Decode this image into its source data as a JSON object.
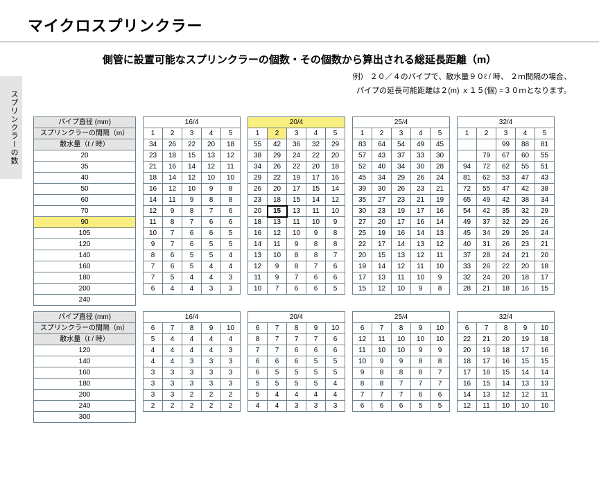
{
  "title": "マイクロスプリンクラー",
  "subtitle": "側管に設置可能なスプリンクラーの個数・その個数から算出される総延長距離（m）",
  "example_line1": "例） ２０／４のパイプで、散水量９０ℓ / 時、 ２ｍ間隔の場合、",
  "example_line2": "パイプの延長可能距離は２(m) ｘ１５(個) =３０ｍとなります。",
  "side_tab": "スプリンクラーの数",
  "rowhead_labels": {
    "pipe_diam": "パイプ直径 (mm)",
    "spacing": "スプリンクラーの間隔（m）",
    "flow": "散水量（ℓ / 時）"
  },
  "pipes": [
    "16/4",
    "20/4",
    "25/4",
    "32/4"
  ],
  "highlight": {
    "block": 0,
    "pipe": 1,
    "col": 1,
    "row": 6
  },
  "blocks": [
    {
      "spacing_cols": [
        1,
        2,
        3,
        4,
        5
      ],
      "flows": [
        20,
        35,
        40,
        50,
        60,
        70,
        90,
        105,
        120,
        140,
        160,
        180,
        200,
        240
      ],
      "data": [
        [
          [
            34,
            26,
            22,
            20,
            18
          ],
          [
            23,
            18,
            15,
            13,
            12
          ],
          [
            21,
            16,
            14,
            12,
            11
          ],
          [
            18,
            14,
            12,
            10,
            10
          ],
          [
            16,
            12,
            10,
            9,
            8
          ],
          [
            14,
            11,
            9,
            8,
            8
          ],
          [
            12,
            9,
            8,
            7,
            6
          ],
          [
            11,
            8,
            7,
            6,
            6
          ],
          [
            10,
            7,
            6,
            6,
            5
          ],
          [
            9,
            7,
            6,
            5,
            5
          ],
          [
            8,
            6,
            5,
            5,
            4
          ],
          [
            7,
            6,
            5,
            4,
            4
          ],
          [
            7,
            5,
            4,
            4,
            3
          ],
          [
            6,
            4,
            4,
            3,
            3
          ]
        ],
        [
          [
            55,
            42,
            36,
            32,
            29
          ],
          [
            38,
            29,
            24,
            22,
            20
          ],
          [
            34,
            26,
            22,
            20,
            18
          ],
          [
            29,
            22,
            19,
            17,
            16
          ],
          [
            26,
            20,
            17,
            15,
            14
          ],
          [
            23,
            18,
            15,
            14,
            12
          ],
          [
            20,
            15,
            13,
            11,
            10
          ],
          [
            18,
            13,
            11,
            10,
            9
          ],
          [
            16,
            12,
            10,
            9,
            8
          ],
          [
            14,
            11,
            9,
            8,
            8
          ],
          [
            13,
            10,
            8,
            8,
            7
          ],
          [
            12,
            9,
            8,
            7,
            6
          ],
          [
            11,
            9,
            7,
            6,
            6
          ],
          [
            10,
            7,
            6,
            6,
            5
          ]
        ],
        [
          [
            83,
            64,
            54,
            49,
            45
          ],
          [
            57,
            43,
            37,
            33,
            30
          ],
          [
            52,
            40,
            34,
            30,
            28
          ],
          [
            45,
            34,
            29,
            26,
            24
          ],
          [
            39,
            30,
            26,
            23,
            21
          ],
          [
            35,
            27,
            23,
            21,
            19
          ],
          [
            30,
            23,
            19,
            17,
            16
          ],
          [
            27,
            20,
            17,
            16,
            14
          ],
          [
            25,
            19,
            16,
            14,
            13
          ],
          [
            22,
            17,
            14,
            13,
            12
          ],
          [
            20,
            15,
            13,
            12,
            11
          ],
          [
            19,
            14,
            12,
            11,
            10
          ],
          [
            17,
            13,
            11,
            10,
            9
          ],
          [
            15,
            12,
            10,
            9,
            8
          ]
        ],
        [
          [
            "",
            "",
            99,
            88,
            81
          ],
          [
            "",
            79,
            67,
            60,
            55
          ],
          [
            94,
            72,
            62,
            55,
            51
          ],
          [
            81,
            62,
            53,
            47,
            43
          ],
          [
            72,
            55,
            47,
            42,
            38
          ],
          [
            65,
            49,
            42,
            38,
            34
          ],
          [
            54,
            42,
            35,
            32,
            29
          ],
          [
            49,
            37,
            32,
            29,
            26
          ],
          [
            45,
            34,
            29,
            26,
            24
          ],
          [
            40,
            31,
            26,
            23,
            21
          ],
          [
            37,
            28,
            24,
            21,
            20
          ],
          [
            33,
            26,
            22,
            20,
            18
          ],
          [
            32,
            24,
            20,
            18,
            17
          ],
          [
            28,
            21,
            18,
            16,
            15
          ]
        ]
      ]
    },
    {
      "spacing_cols": [
        6,
        7,
        8,
        9,
        10
      ],
      "flows": [
        120,
        140,
        160,
        180,
        200,
        240,
        300
      ],
      "data": [
        [
          [
            5,
            4,
            4,
            4,
            4
          ],
          [
            4,
            4,
            4,
            4,
            3
          ],
          [
            4,
            4,
            3,
            3,
            3
          ],
          [
            3,
            3,
            3,
            3,
            3
          ],
          [
            3,
            3,
            3,
            3,
            3
          ],
          [
            3,
            3,
            2,
            2,
            2
          ],
          [
            2,
            2,
            2,
            2,
            2
          ]
        ],
        [
          [
            8,
            7,
            7,
            7,
            6
          ],
          [
            7,
            7,
            6,
            6,
            6
          ],
          [
            6,
            6,
            6,
            5,
            5
          ],
          [
            6,
            5,
            5,
            5,
            5
          ],
          [
            5,
            5,
            5,
            5,
            4
          ],
          [
            5,
            4,
            4,
            4,
            4
          ],
          [
            4,
            4,
            3,
            3,
            3
          ]
        ],
        [
          [
            12,
            11,
            10,
            10,
            10
          ],
          [
            11,
            10,
            10,
            9,
            9
          ],
          [
            10,
            9,
            9,
            8,
            8
          ],
          [
            9,
            8,
            8,
            8,
            7
          ],
          [
            8,
            8,
            7,
            7,
            7
          ],
          [
            7,
            7,
            7,
            6,
            6
          ],
          [
            6,
            6,
            6,
            5,
            5
          ]
        ],
        [
          [
            22,
            21,
            20,
            19,
            18
          ],
          [
            20,
            19,
            18,
            17,
            16
          ],
          [
            18,
            17,
            16,
            15,
            15
          ],
          [
            17,
            16,
            15,
            14,
            14
          ],
          [
            16,
            15,
            14,
            13,
            13
          ],
          [
            14,
            13,
            12,
            12,
            11
          ],
          [
            12,
            11,
            10,
            10,
            10
          ]
        ]
      ]
    }
  ]
}
